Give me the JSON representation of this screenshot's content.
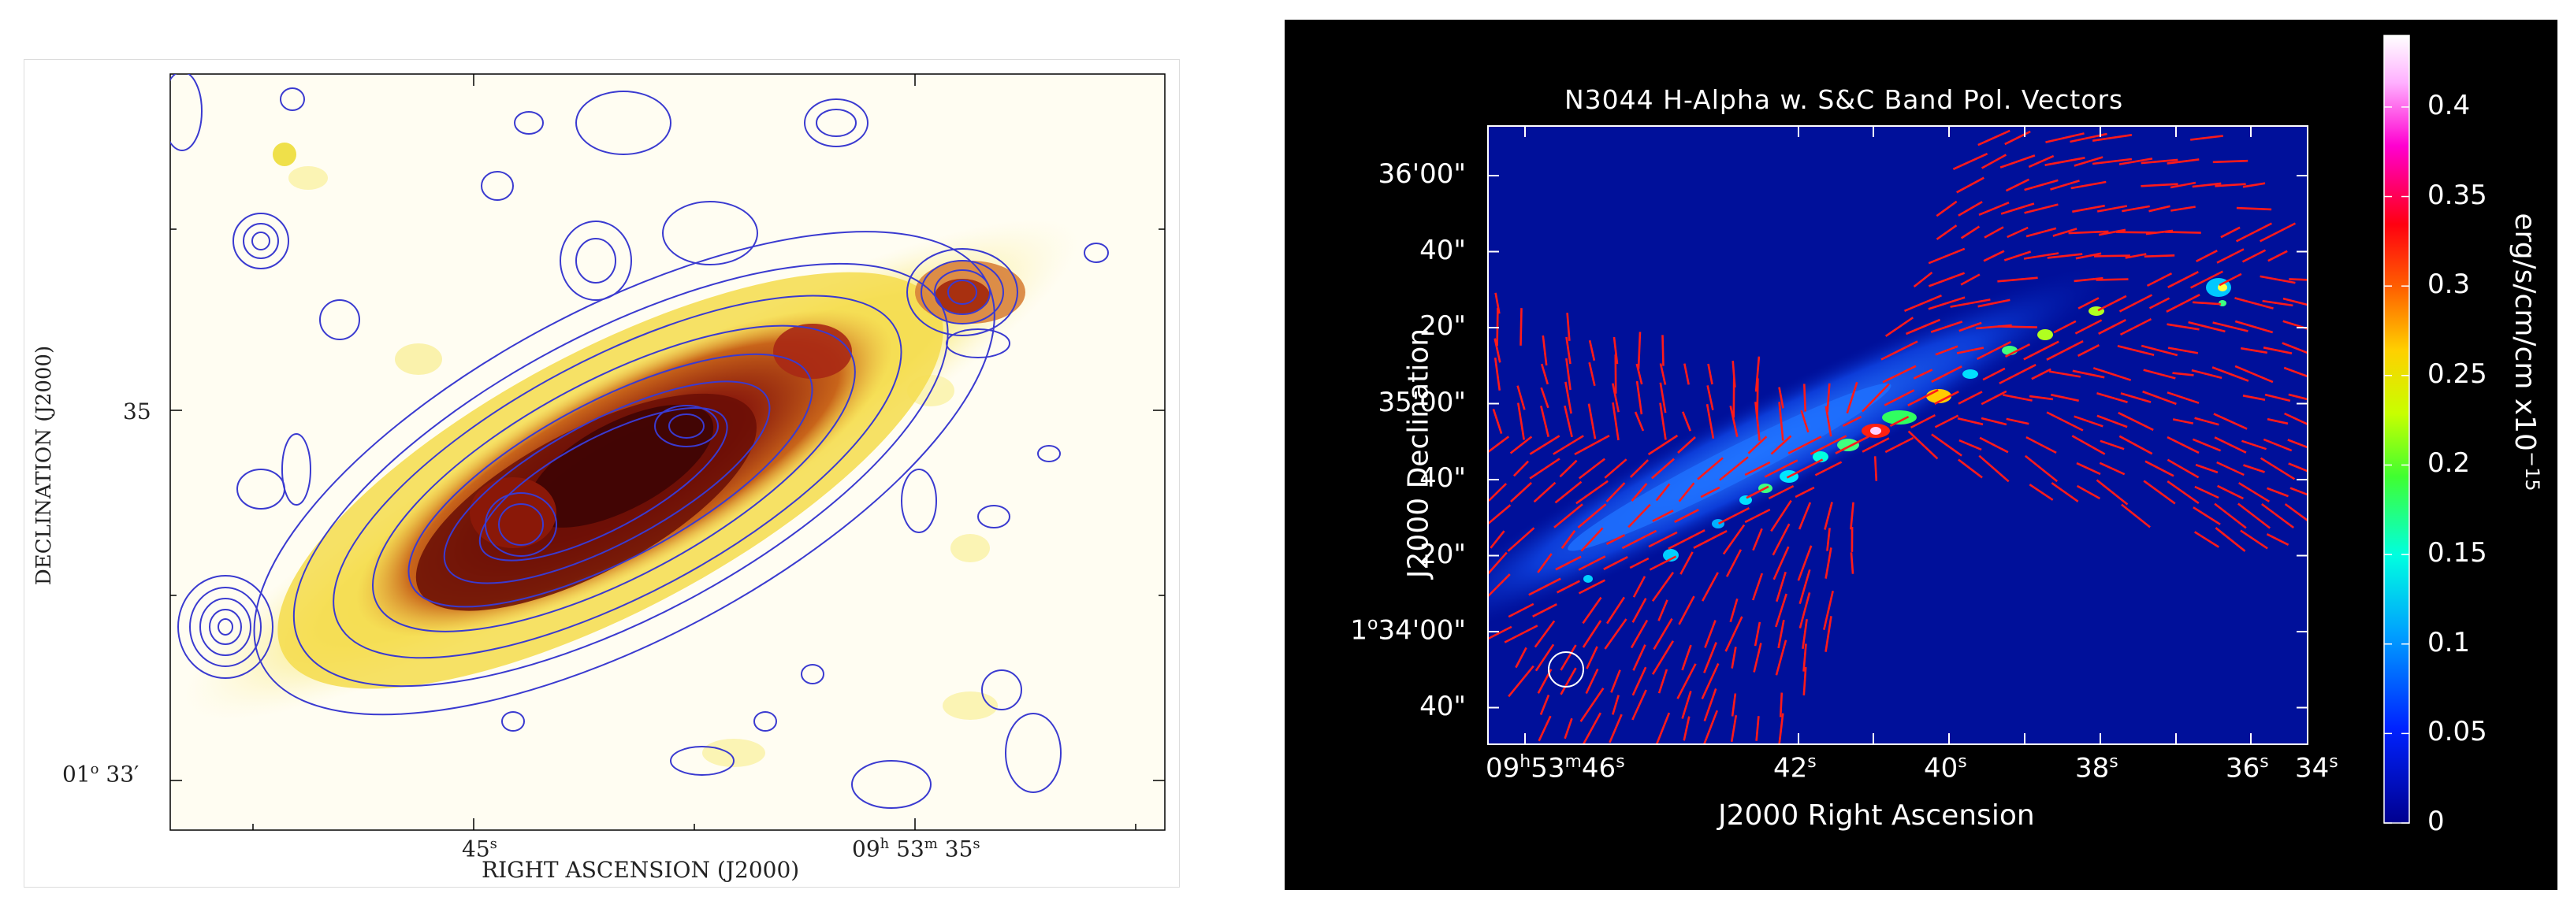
{
  "left_panel": {
    "y_axis_label": "DECLINATION (J2000)",
    "x_axis_label": "RIGHT ASCENSION (J2000)",
    "y_ticks": {
      "dec35": "35",
      "dec33_deg": "01",
      "dec33_min": "33′"
    },
    "x_ticks": {
      "ra45": "45",
      "ra45_sup": "s",
      "ra35_h": "09",
      "ra35_m": "53",
      "ra35_s": "35"
    }
  },
  "right_panel": {
    "title": "N3044 H-Alpha w. S&C Band Pol. Vectors",
    "x_axis_label": "J2000 Right Ascension",
    "y_axis_label": "J2000 Declination",
    "y_ticks": [
      "36'00\"",
      "40\"",
      "20\"",
      "35'00\"",
      "40\"",
      "20\"",
      "34'00\"",
      "40\""
    ],
    "y_tick_first_deg": "1",
    "x_tick_first": {
      "h": "09",
      "m": "53",
      "s": "46"
    },
    "x_ticks": [
      "42",
      "40",
      "38",
      "36",
      "34"
    ],
    "colorbar": {
      "ticks": [
        "0.4",
        "0.35",
        "0.3",
        "0.25",
        "0.2",
        "0.15",
        "0.1",
        "0.05",
        "0"
      ],
      "unit_label": "erg/s/cm/cm  x10",
      "exponent": "−15"
    },
    "colors": {
      "vectors": "#ff1a1a",
      "background": "#00109a",
      "frame": "#ffffff"
    }
  }
}
